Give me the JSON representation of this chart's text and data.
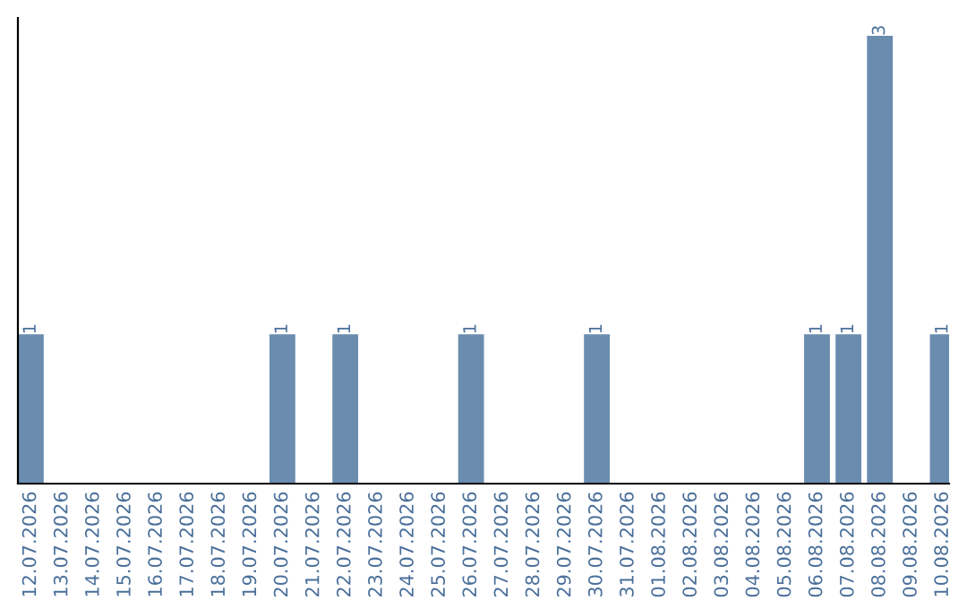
{
  "chart_data": {
    "type": "bar",
    "categories": [
      "12.07.2026",
      "13.07.2026",
      "14.07.2026",
      "15.07.2026",
      "16.07.2026",
      "17.07.2026",
      "18.07.2026",
      "19.07.2026",
      "20.07.2026",
      "21.07.2026",
      "22.07.2026",
      "23.07.2026",
      "24.07.2026",
      "25.07.2026",
      "26.07.2026",
      "27.07.2026",
      "28.07.2026",
      "29.07.2026",
      "30.07.2026",
      "31.07.2026",
      "01.08.2026",
      "02.08.2026",
      "03.08.2026",
      "04.08.2026",
      "05.08.2026",
      "06.08.2026",
      "07.08.2026",
      "08.08.2026",
      "09.08.2026",
      "10.08.2026"
    ],
    "values": [
      1,
      0,
      0,
      0,
      0,
      0,
      0,
      0,
      1,
      0,
      1,
      0,
      0,
      0,
      1,
      0,
      0,
      0,
      1,
      0,
      0,
      0,
      0,
      0,
      0,
      1,
      1,
      3,
      0,
      1
    ],
    "value_labels": [
      "1",
      null,
      null,
      null,
      null,
      null,
      null,
      null,
      "1",
      null,
      "1",
      null,
      null,
      null,
      "1",
      null,
      null,
      null,
      "1",
      null,
      null,
      null,
      null,
      null,
      null,
      "1",
      "1",
      "3",
      null,
      "1"
    ],
    "color": "#6a8caf",
    "tick_labels": "x",
    "grid": false
  }
}
